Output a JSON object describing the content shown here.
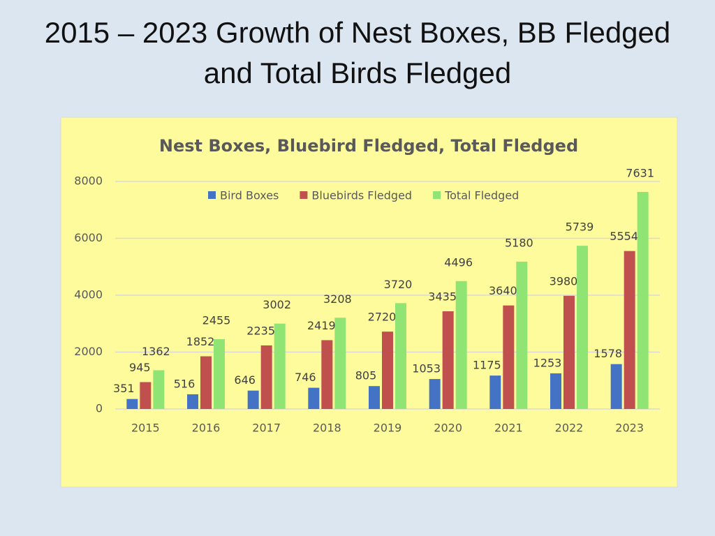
{
  "slide_title": "2015 – 2023 Growth of Nest Boxes, BB Fledged and Total Birds Fledged",
  "chart_data": {
    "type": "bar",
    "title": "Nest Boxes, Bluebird Fledged, Total Fledged",
    "categories": [
      "2015",
      "2016",
      "2017",
      "2018",
      "2019",
      "2020",
      "2021",
      "2022",
      "2023"
    ],
    "series": [
      {
        "name": "Bird Boxes",
        "color": "#4472c4",
        "values": [
          351,
          516,
          646,
          746,
          805,
          1053,
          1175,
          1253,
          1578
        ]
      },
      {
        "name": "Bluebirds Fledged",
        "color": "#c0504d",
        "values": [
          945,
          1852,
          2235,
          2419,
          2720,
          3435,
          3640,
          3980,
          5554
        ]
      },
      {
        "name": "Total Fledged",
        "color": "#8fe474",
        "values": [
          1362,
          2455,
          3002,
          3208,
          3720,
          4496,
          5180,
          5739,
          7631
        ]
      }
    ],
    "ylim": [
      0,
      8000
    ],
    "yticks": [
      0,
      2000,
      4000,
      6000,
      8000
    ],
    "grid": true,
    "legend": "top",
    "background": "#fdfb9b"
  }
}
